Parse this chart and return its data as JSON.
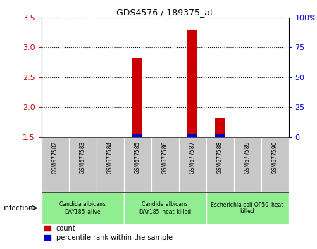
{
  "title": "GDS4576 / 189375_at",
  "samples": [
    "GSM677582",
    "GSM677583",
    "GSM677584",
    "GSM677585",
    "GSM677586",
    "GSM677587",
    "GSM677588",
    "GSM677589",
    "GSM677590"
  ],
  "red_values": [
    null,
    null,
    null,
    2.83,
    null,
    3.28,
    1.82,
    null,
    null
  ],
  "blue_values": [
    null,
    null,
    null,
    1.53,
    null,
    1.53,
    1.53,
    null,
    null
  ],
  "ylim_left": [
    1.5,
    3.5
  ],
  "ylim_right": [
    0,
    100
  ],
  "yticks_left": [
    1.5,
    2.0,
    2.5,
    3.0,
    3.5
  ],
  "yticks_right": [
    0,
    25,
    50,
    75,
    100
  ],
  "ytick_labels_right": [
    "0",
    "25",
    "50",
    "75",
    "100%"
  ],
  "bar_width": 0.35,
  "group_boundaries": [
    [
      0,
      3,
      "Candida albicans\nDAY185_alive"
    ],
    [
      3,
      6,
      "Candida albicans\nDAY185_heat-killed"
    ],
    [
      6,
      9,
      "Escherichia coli OP50_heat\nkilled"
    ]
  ],
  "infection_label": "infection",
  "red_color": "#CC0000",
  "blue_color": "#0000CC",
  "sample_bg_color": "#C8C8C8",
  "group_bg_color": "#90EE90",
  "legend_red_label": "count",
  "legend_blue_label": "percentile rank within the sample"
}
